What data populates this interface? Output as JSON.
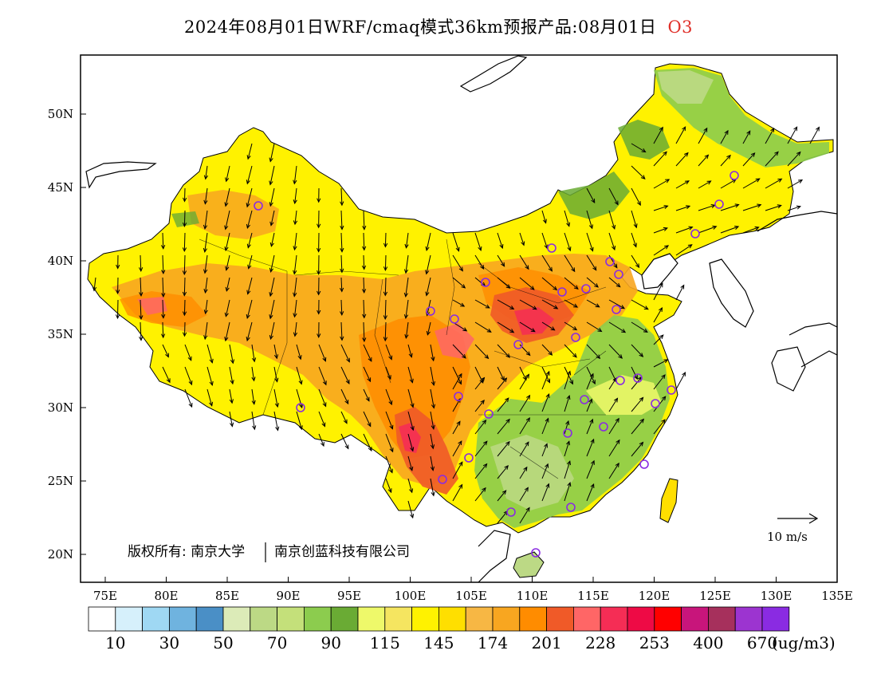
{
  "title": {
    "main": "2024年08月01日WRF/cmaq模式36km预报产品:08月01日",
    "species": "O3"
  },
  "axes": {
    "lat_ticks": [
      "50N",
      "45N",
      "40N",
      "35N",
      "30N",
      "25N",
      "20N"
    ],
    "lon_ticks": [
      "75E",
      "80E",
      "85E",
      "90E",
      "95E",
      "100E",
      "105E",
      "110E",
      "115E",
      "120E",
      "125E",
      "130E",
      "135E"
    ]
  },
  "copyright": {
    "left": "版权所有: 南京大学",
    "right": "南京创蓝科技有限公司"
  },
  "wind_legend": {
    "label": "10 m/s"
  },
  "colorbar": {
    "unit": "(ug/m3)",
    "colors": [
      "#ffffff",
      "#d6f0fb",
      "#9fd8f3",
      "#6fb3df",
      "#4a8fc6",
      "#dcebb8",
      "#bcd985",
      "#c4e07a",
      "#8ccc4e",
      "#6aab34",
      "#eef96a",
      "#f5e560",
      "#fff200",
      "#ffdf00",
      "#f7b744",
      "#f8a620",
      "#ff8c00",
      "#f05a28",
      "#ff6666",
      "#f52d55",
      "#ee0a45",
      "#ff0000",
      "#c8157b",
      "#a6305c",
      "#9c34d0",
      "#8a2be2"
    ],
    "labels": [
      "10",
      "30",
      "50",
      "70",
      "90",
      "115",
      "145",
      "174",
      "201",
      "228",
      "253",
      "400",
      "670"
    ]
  }
}
